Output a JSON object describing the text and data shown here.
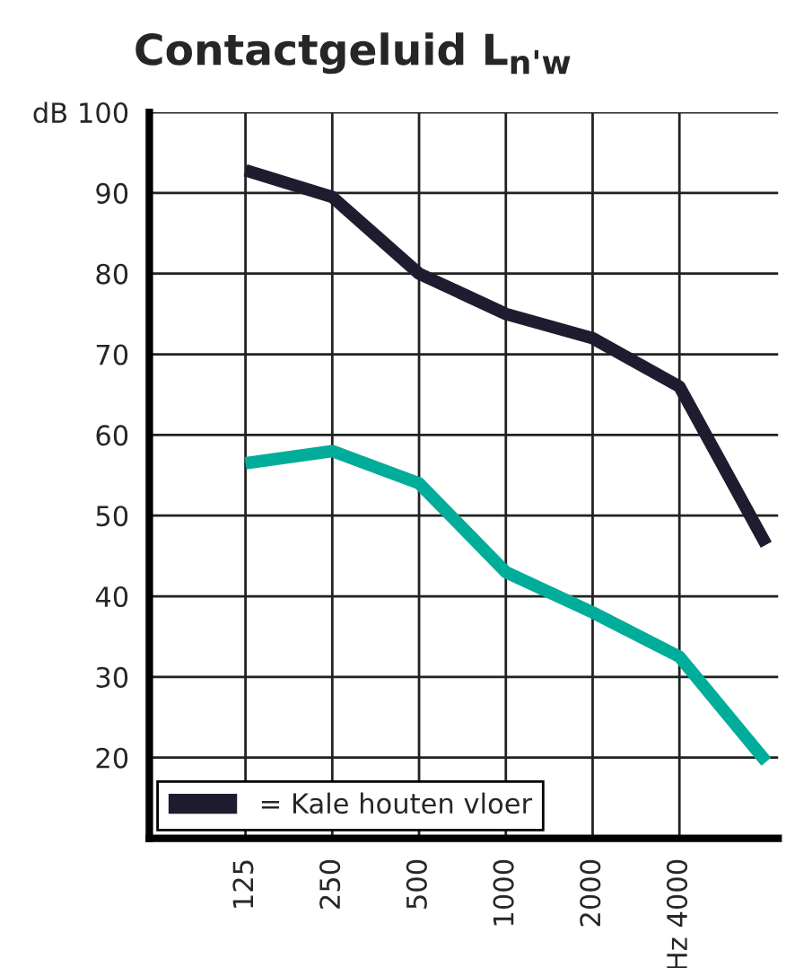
{
  "chart_data": {
    "type": "line",
    "title": "Contactgeluid L$_{n'w}$",
    "x": [
      125,
      250,
      500,
      1000,
      2000,
      4000,
      8000
    ],
    "series": [
      {
        "color": "#00ad9a",
        "values": [
          56.5,
          58,
          54,
          43,
          38,
          32.5,
          19.5
        ]
      },
      {
        "name": "= Kale houten vloer",
        "color": "#1e1c2e",
        "values": [
          92.8,
          89.5,
          80,
          75,
          72,
          66,
          46.4
        ]
      }
    ],
    "log": "x",
    "xlim": [
      58,
      8800
    ],
    "xticks": [
      125,
      250,
      500,
      1000,
      2000,
      {
        "value": 4000,
        "label": "Hz 4000"
      }
    ],
    "ylim": [
      10,
      100
    ],
    "yticks": [
      20,
      30,
      40,
      50,
      60,
      70,
      80,
      90,
      {
        "value": 100,
        "label": "dB 100"
      }
    ],
    "grid": true,
    "legend": "bottom left",
    "marker": "none",
    "line_style": "solid"
  }
}
